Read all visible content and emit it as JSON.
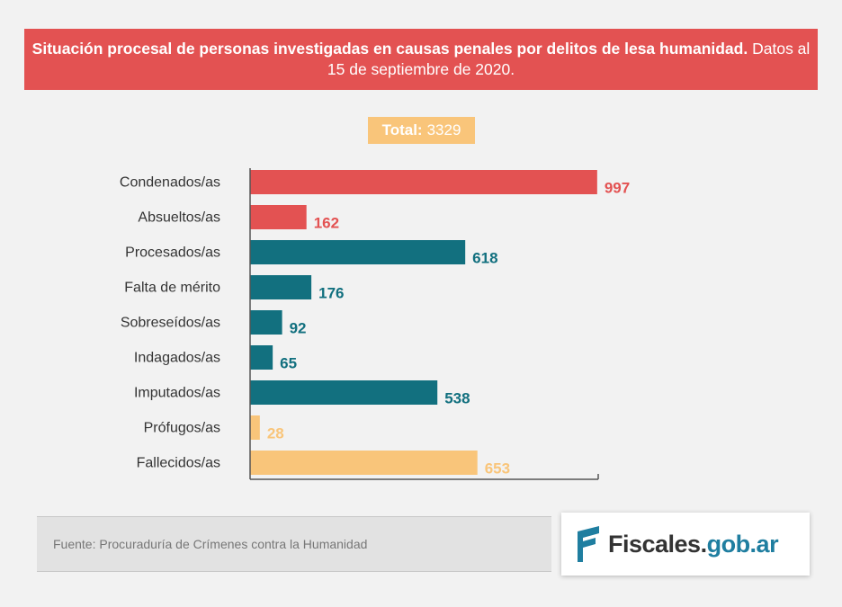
{
  "header": {
    "title_bold": "Situación procesal de personas investigadas en  causas penales por delitos de lesa humanidad.",
    "title_normal": "Datos al 15 de septiembre de 2020."
  },
  "total": {
    "label": "Total:",
    "value": "3329"
  },
  "colors": {
    "red": "#e35252",
    "teal": "#12707f",
    "orange": "#f9c57a",
    "logo_blue": "#1f7ea0"
  },
  "chart_data": {
    "type": "bar",
    "orientation": "horizontal",
    "title": "",
    "xlabel": "",
    "ylabel": "",
    "xlim": [
      0,
      1000
    ],
    "grid": false,
    "categories": [
      "Condenados/as",
      "Absueltos/as",
      "Procesados/as",
      "Falta de mérito",
      "Sobreseídos/as",
      "Indagados/as",
      "Imputados/as",
      "Prófugos/as",
      "Fallecidos/as"
    ],
    "values": [
      997,
      162,
      618,
      176,
      92,
      65,
      538,
      28,
      653
    ],
    "bar_colors": [
      "#e35252",
      "#e35252",
      "#12707f",
      "#12707f",
      "#12707f",
      "#12707f",
      "#12707f",
      "#f9c57a",
      "#f9c57a"
    ]
  },
  "footer": {
    "source": "Fuente: Procuraduría de Crímenes contra la Humanidad",
    "logo_text_main": "Fiscales.",
    "logo_text_domain": "gob.ar",
    "logo_icon": "fiscales-flag-icon"
  }
}
